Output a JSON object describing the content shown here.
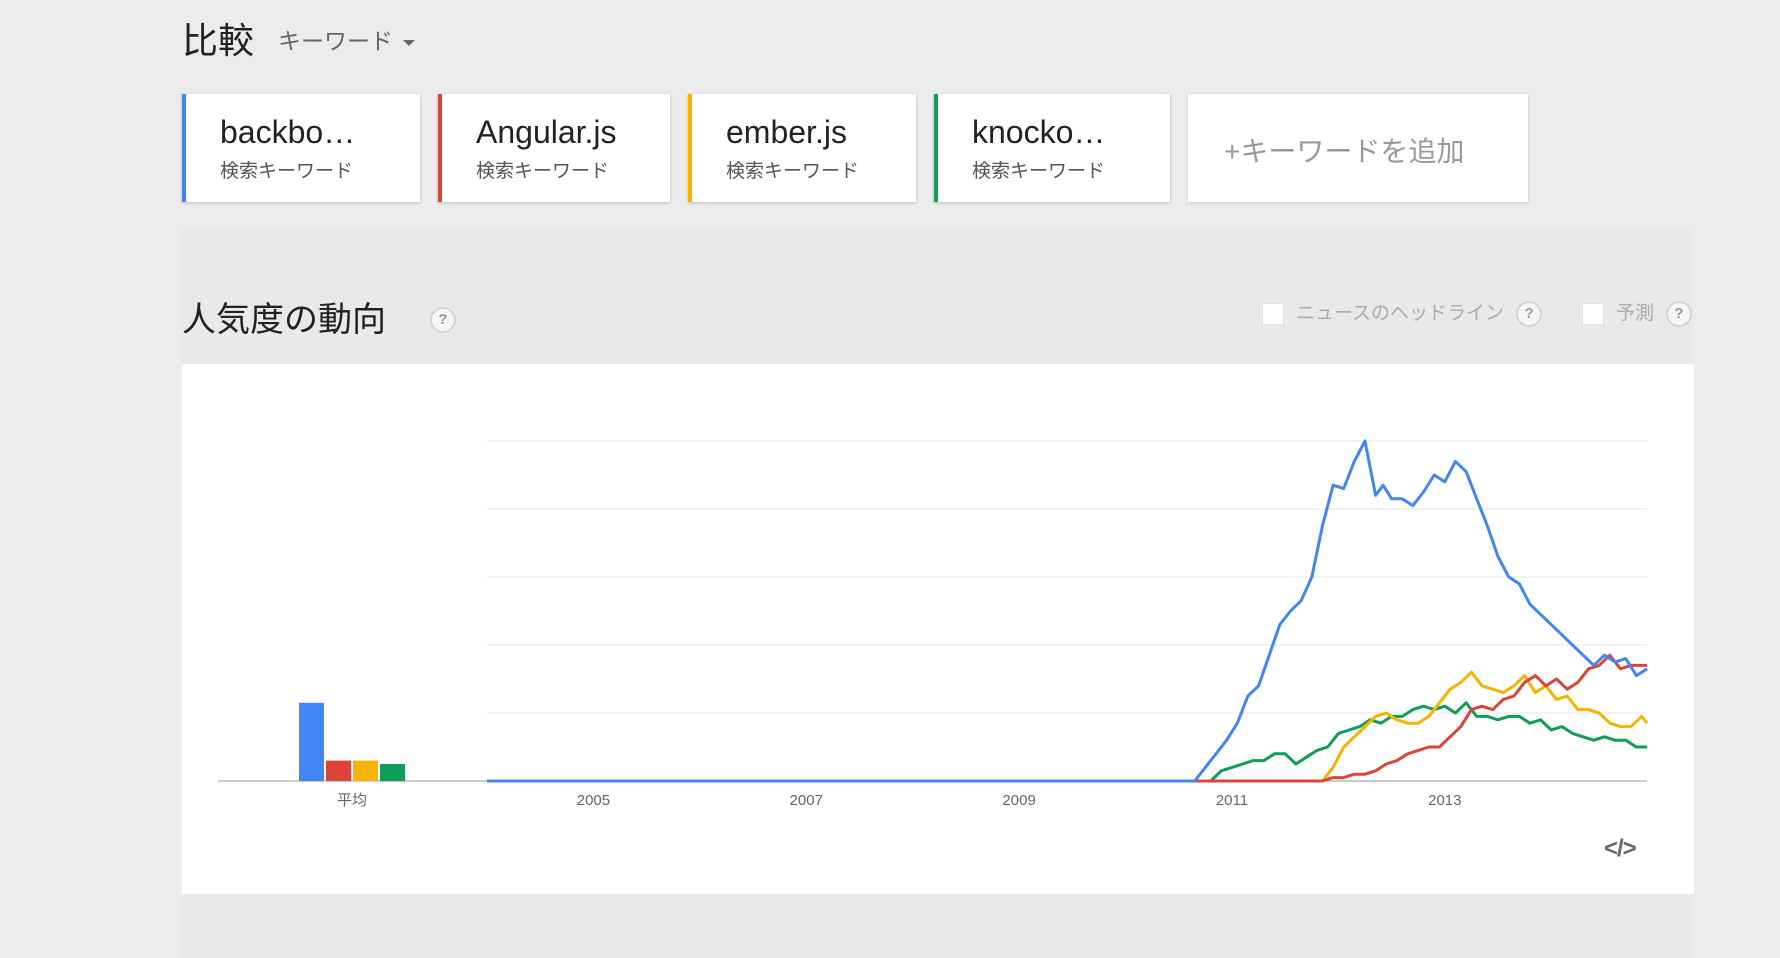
{
  "header": {
    "title": "比較",
    "mode_label": "キーワード"
  },
  "keywords": [
    {
      "name": "backbo…",
      "type": "検索キーワード",
      "color": "#4285f4"
    },
    {
      "name": "Angular.js",
      "type": "検索キーワード",
      "color": "#db4437"
    },
    {
      "name": "ember.js",
      "type": "検索キーワード",
      "color": "#f4b400"
    },
    {
      "name": "knocko…",
      "type": "検索キーワード",
      "color": "#0f9d58"
    }
  ],
  "add_keyword_label": "+キーワードを追加",
  "section": {
    "title": "人気度の動向",
    "help_glyph": "?",
    "news_headlines_label": "ニュースのヘッドライン",
    "forecast_label": "予測"
  },
  "embed_label": "</>",
  "chart_data": {
    "type": "line",
    "title": "",
    "xlabel": "",
    "ylabel": "",
    "ylim": [
      0,
      100
    ],
    "grid": true,
    "legend": "none",
    "x_ticks": [
      "2005",
      "2007",
      "2009",
      "2011",
      "2013"
    ],
    "x_range": [
      2004.0,
      2014.9
    ],
    "average_label": "平均",
    "averages": [
      {
        "name": "backbo…",
        "value": 23,
        "color": "#4285f4"
      },
      {
        "name": "Angular.js",
        "value": 6,
        "color": "#db4437"
      },
      {
        "name": "ember.js",
        "value": 6,
        "color": "#f4b400"
      },
      {
        "name": "knocko…",
        "value": 5,
        "color": "#0f9d58"
      }
    ],
    "series": [
      {
        "name": "backbo…",
        "color": "#4285f4",
        "x": [
          2004.0,
          2010.65,
          2010.75,
          2010.85,
          2010.95,
          2011.05,
          2011.15,
          2011.25,
          2011.35,
          2011.45,
          2011.55,
          2011.65,
          2011.75,
          2011.85,
          2011.95,
          2012.05,
          2012.15,
          2012.25,
          2012.35,
          2012.42,
          2012.5,
          2012.6,
          2012.7,
          2012.8,
          2012.9,
          2013.0,
          2013.1,
          2013.2,
          2013.3,
          2013.4,
          2013.5,
          2013.6,
          2013.7,
          2013.8,
          2013.9,
          2014.0,
          2014.1,
          2014.2,
          2014.3,
          2014.4,
          2014.5,
          2014.6,
          2014.7,
          2014.8,
          2014.9
        ],
        "values": [
          0,
          0,
          4,
          8,
          12,
          17,
          25,
          28,
          37,
          46,
          50,
          53,
          60,
          75,
          87,
          86,
          94,
          100,
          84,
          87,
          83,
          83,
          81,
          85,
          90,
          88,
          94,
          91,
          83,
          75,
          66,
          60,
          58,
          52,
          49,
          46,
          43,
          40,
          37,
          34,
          37,
          35,
          36,
          31,
          33
        ]
      },
      {
        "name": "Angular.js",
        "color": "#db4437",
        "x": [
          2004.0,
          2011.85,
          2011.95,
          2012.05,
          2012.15,
          2012.25,
          2012.35,
          2012.45,
          2012.55,
          2012.65,
          2012.75,
          2012.85,
          2012.95,
          2013.05,
          2013.15,
          2013.25,
          2013.35,
          2013.45,
          2013.55,
          2013.65,
          2013.75,
          2013.85,
          2013.95,
          2014.05,
          2014.15,
          2014.25,
          2014.35,
          2014.45,
          2014.55,
          2014.65,
          2014.75,
          2014.85,
          2014.9
        ],
        "values": [
          0,
          0,
          1,
          1,
          2,
          2,
          3,
          5,
          6,
          8,
          9,
          10,
          10,
          13,
          16,
          21,
          22,
          21,
          24,
          25,
          29,
          31,
          28,
          30,
          27,
          29,
          33,
          34,
          37,
          33,
          34,
          34,
          34
        ]
      },
      {
        "name": "ember.js",
        "color": "#f4b400",
        "x": [
          2004.0,
          2011.85,
          2011.95,
          2012.05,
          2012.15,
          2012.25,
          2012.35,
          2012.45,
          2012.55,
          2012.65,
          2012.75,
          2012.85,
          2012.95,
          2013.05,
          2013.15,
          2013.25,
          2013.35,
          2013.45,
          2013.55,
          2013.65,
          2013.75,
          2013.85,
          2013.95,
          2014.05,
          2014.15,
          2014.25,
          2014.35,
          2014.45,
          2014.55,
          2014.65,
          2014.75,
          2014.85,
          2014.9
        ],
        "values": [
          0,
          0,
          4,
          10,
          13,
          16,
          19,
          20,
          18,
          17,
          17,
          19,
          23,
          27,
          29,
          32,
          28,
          27,
          26,
          28,
          31,
          26,
          28,
          24,
          25,
          21,
          21,
          20,
          17,
          16,
          16,
          19,
          17
        ]
      },
      {
        "name": "knocko…",
        "color": "#0f9d58",
        "x": [
          2004.0,
          2010.7,
          2010.8,
          2010.9,
          2011.0,
          2011.1,
          2011.2,
          2011.3,
          2011.4,
          2011.5,
          2011.6,
          2011.7,
          2011.8,
          2011.9,
          2012.0,
          2012.1,
          2012.2,
          2012.3,
          2012.4,
          2012.5,
          2012.6,
          2012.7,
          2012.8,
          2012.9,
          2013.0,
          2013.1,
          2013.2,
          2013.3,
          2013.4,
          2013.5,
          2013.6,
          2013.7,
          2013.8,
          2013.9,
          2014.0,
          2014.1,
          2014.2,
          2014.3,
          2014.4,
          2014.5,
          2014.6,
          2014.7,
          2014.8,
          2014.9
        ],
        "values": [
          0,
          0,
          0,
          3,
          4,
          5,
          6,
          6,
          8,
          8,
          5,
          7,
          9,
          10,
          14,
          15,
          16,
          18,
          17,
          19,
          19,
          21,
          22,
          21,
          22,
          20,
          23,
          19,
          19,
          18,
          19,
          19,
          17,
          18,
          15,
          16,
          14,
          13,
          12,
          13,
          12,
          12,
          10,
          10
        ]
      }
    ]
  }
}
